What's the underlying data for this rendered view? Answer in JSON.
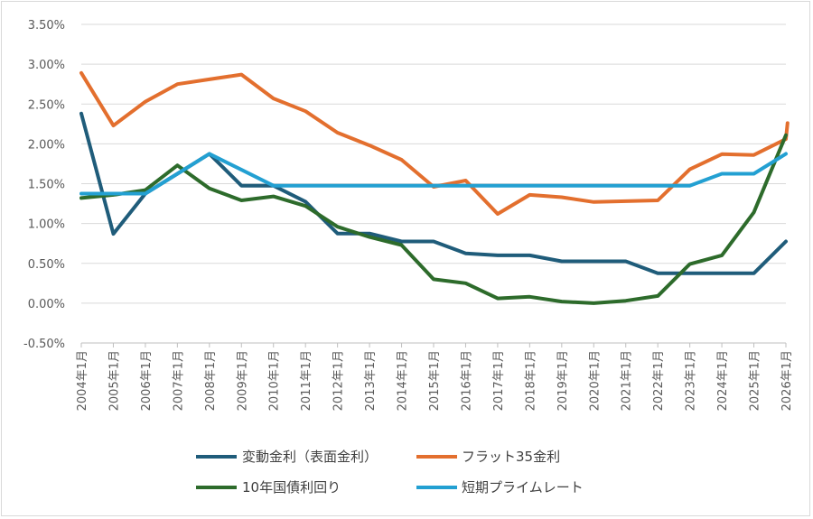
{
  "chart_data": {
    "type": "line",
    "title": "",
    "xlabel": "",
    "ylabel": "",
    "ylim": [
      -0.5,
      3.5
    ],
    "yticks": [
      "3.50%",
      "3.00%",
      "2.50%",
      "2.00%",
      "1.50%",
      "1.00%",
      "0.50%",
      "0.00%",
      "-0.50%"
    ],
    "ytick_values": [
      3.5,
      3.0,
      2.5,
      2.0,
      1.5,
      1.0,
      0.5,
      0.0,
      -0.5
    ],
    "grid": true,
    "legend_position": "bottom",
    "categories": [
      "2004年1月",
      "2005年1月",
      "2006年1月",
      "2007年1月",
      "2008年1月",
      "2009年1月",
      "2010年1月",
      "2011年1月",
      "2012年1月",
      "2013年1月",
      "2014年1月",
      "2015年1月",
      "2016年1月",
      "2017年1月",
      "2018年1月",
      "2019年1月",
      "2020年1月",
      "2021年1月",
      "2022年1月",
      "2023年1月",
      "2024年1月",
      "2025年1月",
      "2026年1月"
    ],
    "series": [
      {
        "name": "変動金利（表面金利）",
        "color": "#1f5c7a",
        "points": [
          [
            0,
            2.38
          ],
          [
            1,
            0.87
          ],
          [
            2,
            1.375
          ],
          [
            3,
            1.625
          ],
          [
            4,
            1.875
          ],
          [
            5,
            1.475
          ],
          [
            6,
            1.475
          ],
          [
            7,
            1.275
          ],
          [
            8,
            0.875
          ],
          [
            9,
            0.875
          ],
          [
            10,
            0.775
          ],
          [
            11,
            0.775
          ],
          [
            12,
            0.625
          ],
          [
            13,
            0.6
          ],
          [
            14,
            0.6
          ],
          [
            15,
            0.525
          ],
          [
            16,
            0.525
          ],
          [
            17,
            0.525
          ],
          [
            18,
            0.375
          ],
          [
            19,
            0.375
          ],
          [
            20,
            0.375
          ],
          [
            21,
            0.375
          ],
          [
            22,
            0.775
          ]
        ]
      },
      {
        "name": "フラット35金利",
        "color": "#e36f2e",
        "points": [
          [
            0,
            2.89
          ],
          [
            1,
            2.23
          ],
          [
            2,
            2.53
          ],
          [
            3,
            2.75
          ],
          [
            4,
            2.81
          ],
          [
            5,
            2.87
          ],
          [
            6,
            2.57
          ],
          [
            7,
            2.41
          ],
          [
            8,
            2.14
          ],
          [
            9,
            1.98
          ],
          [
            10,
            1.8
          ],
          [
            11,
            1.46
          ],
          [
            12,
            1.54
          ],
          [
            13,
            1.12
          ],
          [
            14,
            1.36
          ],
          [
            15,
            1.33
          ],
          [
            16,
            1.27
          ],
          [
            17,
            1.28
          ],
          [
            18,
            1.29
          ],
          [
            19,
            1.68
          ],
          [
            20,
            1.87
          ],
          [
            21,
            1.86
          ],
          [
            22,
            2.06
          ],
          [
            22.05,
            2.26
          ]
        ]
      },
      {
        "name": "10年国債利回り",
        "color": "#2d6b2b",
        "points": [
          [
            0,
            1.32
          ],
          [
            1,
            1.36
          ],
          [
            2,
            1.42
          ],
          [
            3,
            1.73
          ],
          [
            4,
            1.44
          ],
          [
            5,
            1.29
          ],
          [
            6,
            1.34
          ],
          [
            7,
            1.22
          ],
          [
            8,
            0.96
          ],
          [
            9,
            0.83
          ],
          [
            10,
            0.73
          ],
          [
            11,
            0.3
          ],
          [
            12,
            0.25
          ],
          [
            13,
            0.06
          ],
          [
            14,
            0.08
          ],
          [
            15,
            0.02
          ],
          [
            16,
            0.0
          ],
          [
            17,
            0.03
          ],
          [
            18,
            0.09
          ],
          [
            19,
            0.49
          ],
          [
            20,
            0.6
          ],
          [
            21,
            1.14
          ],
          [
            22,
            2.11
          ]
        ]
      },
      {
        "name": "短期プライムレート",
        "color": "#23a0d2",
        "points": [
          [
            0,
            1.375
          ],
          [
            1,
            1.375
          ],
          [
            2,
            1.375
          ],
          [
            3,
            1.625
          ],
          [
            4,
            1.875
          ],
          [
            5,
            1.675
          ],
          [
            6,
            1.475
          ],
          [
            7,
            1.475
          ],
          [
            8,
            1.475
          ],
          [
            9,
            1.475
          ],
          [
            10,
            1.475
          ],
          [
            11,
            1.475
          ],
          [
            12,
            1.475
          ],
          [
            13,
            1.475
          ],
          [
            14,
            1.475
          ],
          [
            15,
            1.475
          ],
          [
            16,
            1.475
          ],
          [
            17,
            1.475
          ],
          [
            18,
            1.475
          ],
          [
            19,
            1.475
          ],
          [
            20,
            1.625
          ],
          [
            21,
            1.625
          ],
          [
            22,
            1.875
          ]
        ]
      }
    ]
  }
}
